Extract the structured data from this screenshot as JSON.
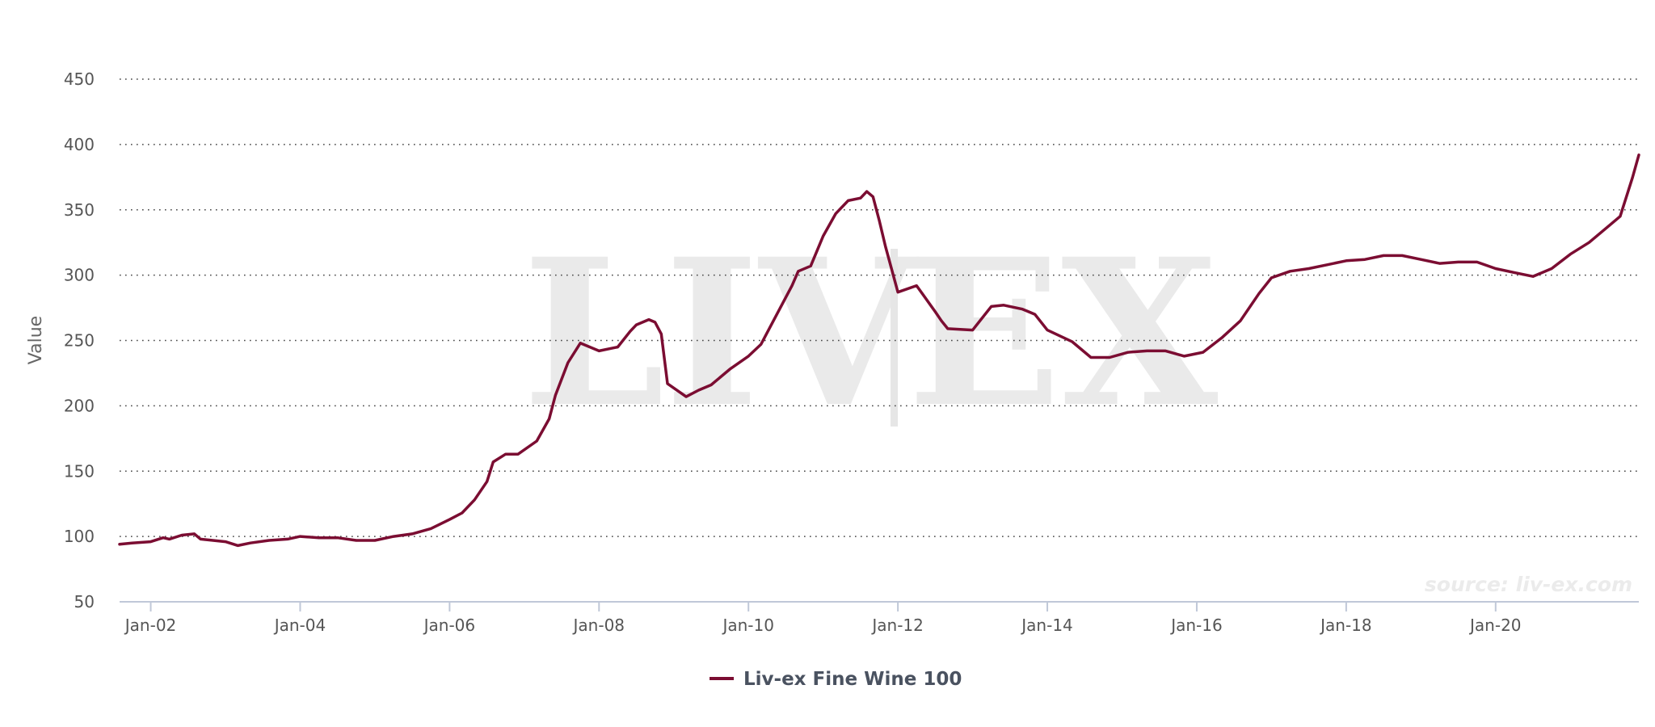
{
  "colors": {
    "series": "#7b0d32",
    "grid": "#444444",
    "axis": "#c0c8d8",
    "watermark": "#eaeaea",
    "source": "#ebebeb"
  },
  "watermark": {
    "left": "LIV",
    "right": "EX"
  },
  "source": "source: liv-ex.com",
  "chart_data": {
    "type": "line",
    "title": "",
    "xlabel": "",
    "ylabel": "Value",
    "ylim": [
      50,
      450
    ],
    "yticks": [
      50,
      100,
      150,
      200,
      250,
      300,
      350,
      400,
      450
    ],
    "xlim": [
      "2001-08",
      "2021-12"
    ],
    "xticks": [
      {
        "date": "2002-01",
        "label": "Jan-02"
      },
      {
        "date": "2004-01",
        "label": "Jan-04"
      },
      {
        "date": "2006-01",
        "label": "Jan-06"
      },
      {
        "date": "2008-01",
        "label": "Jan-08"
      },
      {
        "date": "2010-01",
        "label": "Jan-10"
      },
      {
        "date": "2012-01",
        "label": "Jan-12"
      },
      {
        "date": "2014-01",
        "label": "Jan-14"
      },
      {
        "date": "2016-01",
        "label": "Jan-16"
      },
      {
        "date": "2018-01",
        "label": "Jan-18"
      },
      {
        "date": "2020-01",
        "label": "Jan-20"
      }
    ],
    "grid": true,
    "legend": "bottom-center",
    "series": [
      {
        "name": "Liv-ex Fine Wine 100",
        "points": [
          [
            "2001-08",
            94
          ],
          [
            "2001-10",
            95
          ],
          [
            "2002-01",
            96
          ],
          [
            "2002-03",
            99
          ],
          [
            "2002-04",
            98
          ],
          [
            "2002-06",
            101
          ],
          [
            "2002-08",
            102
          ],
          [
            "2002-09",
            98
          ],
          [
            "2002-11",
            97
          ],
          [
            "2003-01",
            96
          ],
          [
            "2003-03",
            93
          ],
          [
            "2003-05",
            95
          ],
          [
            "2003-08",
            97
          ],
          [
            "2003-11",
            98
          ],
          [
            "2004-01",
            100
          ],
          [
            "2004-04",
            99
          ],
          [
            "2004-07",
            99
          ],
          [
            "2004-10",
            97
          ],
          [
            "2005-01",
            97
          ],
          [
            "2005-04",
            100
          ],
          [
            "2005-07",
            102
          ],
          [
            "2005-10",
            106
          ],
          [
            "2006-01",
            113
          ],
          [
            "2006-03",
            118
          ],
          [
            "2006-05",
            128
          ],
          [
            "2006-07",
            142
          ],
          [
            "2006-08",
            157
          ],
          [
            "2006-10",
            163
          ],
          [
            "2006-12",
            163
          ],
          [
            "2007-03",
            173
          ],
          [
            "2007-05",
            190
          ],
          [
            "2007-06",
            208
          ],
          [
            "2007-08",
            233
          ],
          [
            "2007-10",
            248
          ],
          [
            "2008-01",
            242
          ],
          [
            "2008-04",
            245
          ],
          [
            "2008-06",
            257
          ],
          [
            "2008-07",
            262
          ],
          [
            "2008-09",
            266
          ],
          [
            "2008-10",
            264
          ],
          [
            "2008-11",
            255
          ],
          [
            "2008-12",
            217
          ],
          [
            "2009-03",
            207
          ],
          [
            "2009-05",
            212
          ],
          [
            "2009-07",
            216
          ],
          [
            "2009-10",
            228
          ],
          [
            "2010-01",
            238
          ],
          [
            "2010-03",
            247
          ],
          [
            "2010-06",
            274
          ],
          [
            "2010-08",
            292
          ],
          [
            "2010-09",
            303
          ],
          [
            "2010-11",
            307
          ],
          [
            "2011-01",
            330
          ],
          [
            "2011-03",
            347
          ],
          [
            "2011-05",
            357
          ],
          [
            "2011-07",
            359
          ],
          [
            "2011-08",
            364
          ],
          [
            "2011-09",
            360
          ],
          [
            "2011-10",
            342
          ],
          [
            "2011-11",
            322
          ],
          [
            "2012-01",
            287
          ],
          [
            "2012-04",
            292
          ],
          [
            "2012-07",
            272
          ],
          [
            "2012-08",
            265
          ],
          [
            "2012-09",
            259
          ],
          [
            "2013-01",
            258
          ],
          [
            "2013-04",
            276
          ],
          [
            "2013-06",
            277
          ],
          [
            "2013-09",
            274
          ],
          [
            "2013-11",
            270
          ],
          [
            "2014-01",
            258
          ],
          [
            "2014-05",
            249
          ],
          [
            "2014-08",
            237
          ],
          [
            "2014-11",
            237
          ],
          [
            "2015-02",
            241
          ],
          [
            "2015-05",
            242
          ],
          [
            "2015-08",
            242
          ],
          [
            "2015-11",
            238
          ],
          [
            "2016-02",
            241
          ],
          [
            "2016-05",
            252
          ],
          [
            "2016-08",
            265
          ],
          [
            "2016-11",
            286
          ],
          [
            "2017-01",
            298
          ],
          [
            "2017-04",
            303
          ],
          [
            "2017-07",
            305
          ],
          [
            "2017-10",
            308
          ],
          [
            "2018-01",
            311
          ],
          [
            "2018-04",
            312
          ],
          [
            "2018-07",
            315
          ],
          [
            "2018-10",
            315
          ],
          [
            "2019-01",
            312
          ],
          [
            "2019-04",
            309
          ],
          [
            "2019-07",
            310
          ],
          [
            "2019-10",
            310
          ],
          [
            "2020-01",
            305
          ],
          [
            "2020-04",
            302
          ],
          [
            "2020-07",
            299
          ],
          [
            "2020-10",
            305
          ],
          [
            "2021-01",
            316
          ],
          [
            "2021-04",
            325
          ],
          [
            "2021-07",
            337
          ],
          [
            "2021-09",
            345
          ],
          [
            "2021-10",
            360
          ],
          [
            "2021-11",
            375
          ],
          [
            "2021-12",
            392
          ]
        ]
      }
    ]
  }
}
